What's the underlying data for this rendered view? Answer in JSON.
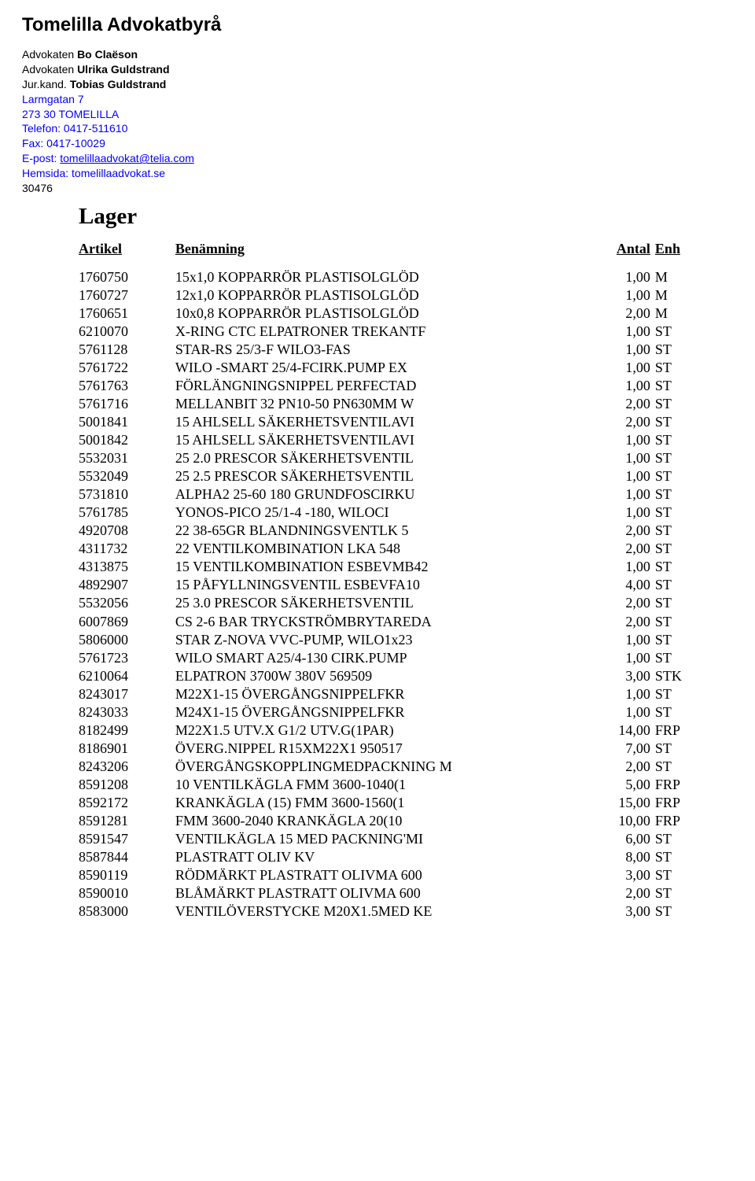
{
  "header": {
    "firm_name": "Tomelilla Advokatbyrå",
    "contacts": [
      {
        "label": "Advokaten ",
        "name": "Bo Claëson"
      },
      {
        "label": "Advokaten ",
        "name": "Ulrika Guldstrand"
      },
      {
        "label": "Jur.kand. ",
        "name": "Tobias Guldstrand"
      }
    ],
    "address1": "Larmgatan 7",
    "address2": "273 30 TOMELILLA",
    "phone": "Telefon: 0417-511610",
    "fax": "Fax: 0417-10029",
    "email_label": "E-post: ",
    "email": "tomelillaadvokat@telia.com",
    "website_label": "Hemsida: ",
    "website": "tomelillaadvokat.se",
    "ref_number": "30476"
  },
  "section_title": "Lager",
  "columns": {
    "artikel": "Artikel",
    "benamning": "Benämning",
    "antal": "Antal",
    "enh": "Enh"
  },
  "rows": [
    {
      "artikel": "1760750",
      "benamning": "15x1,0 KOPPARRÖR PLASTISOLGLÖD",
      "antal": "1,00",
      "enh": "M"
    },
    {
      "artikel": "1760727",
      "benamning": "12x1,0 KOPPARRÖR PLASTISOLGLÖD",
      "antal": "1,00",
      "enh": "M"
    },
    {
      "artikel": "1760651",
      "benamning": "10x0,8 KOPPARRÖR PLASTISOLGLÖD",
      "antal": "2,00",
      "enh": "M"
    },
    {
      "artikel": "6210070",
      "benamning": "X-RING CTC ELPATRONER TREKANTF",
      "antal": "1,00",
      "enh": "ST"
    },
    {
      "artikel": "5761128",
      "benamning": "STAR-RS 25/3-F    WILO3-FAS",
      "antal": "1,00",
      "enh": "ST"
    },
    {
      "artikel": "5761722",
      "benamning": "WILO -SMART 25/4-FCIRK.PUMP EX",
      "antal": "1,00",
      "enh": "ST"
    },
    {
      "artikel": "5761763",
      "benamning": "FÖRLÄNGNINGSNIPPEL   PERFECTAD",
      "antal": "1,00",
      "enh": "ST"
    },
    {
      "artikel": "5761716",
      "benamning": "MELLANBIT 32 PN10-50 PN630MM W",
      "antal": "2,00",
      "enh": "ST"
    },
    {
      "artikel": "5001841",
      "benamning": "15 AHLSELL SÄKERHETSVENTILAVI",
      "antal": "2,00",
      "enh": "ST"
    },
    {
      "artikel": "5001842",
      "benamning": "15 AHLSELL SÄKERHETSVENTILAVI",
      "antal": "1,00",
      "enh": "ST"
    },
    {
      "artikel": "5532031",
      "benamning": "25 2.0 PRESCOR SÄKERHETSVENTIL",
      "antal": "1,00",
      "enh": "ST"
    },
    {
      "artikel": "5532049",
      "benamning": "25 2.5 PRESCOR SÄKERHETSVENTIL",
      "antal": "1,00",
      "enh": "ST"
    },
    {
      "artikel": "5731810",
      "benamning": "ALPHA2 25-60 180 GRUNDFOSCIRKU",
      "antal": "1,00",
      "enh": "ST"
    },
    {
      "artikel": "5761785",
      "benamning": "YONOS-PICO 25/1-4 -180, WILOCI",
      "antal": "1,00",
      "enh": "ST"
    },
    {
      "artikel": "4920708",
      "benamning": "22 38-65GR  BLANDNINGSVENTLK 5",
      "antal": "2,00",
      "enh": "ST"
    },
    {
      "artikel": "4311732",
      "benamning": "22 VENTILKOMBINATION LKA 548",
      "antal": "2,00",
      "enh": "ST"
    },
    {
      "artikel": "4313875",
      "benamning": "15 VENTILKOMBINATION ESBEVMB42",
      "antal": "1,00",
      "enh": "ST"
    },
    {
      "artikel": "4892907",
      "benamning": "15 PÅFYLLNINGSVENTIL ESBEVFA10",
      "antal": "4,00",
      "enh": "ST"
    },
    {
      "artikel": "5532056",
      "benamning": "25 3.0 PRESCOR SÄKERHETSVENTIL",
      "antal": "2,00",
      "enh": "ST"
    },
    {
      "artikel": "6007869",
      "benamning": "CS 2-6 BAR TRYCKSTRÖMBRYTAREDA",
      "antal": "2,00",
      "enh": "ST"
    },
    {
      "artikel": "5806000",
      "benamning": "STAR Z-NOVA VVC-PUMP, WILO1x23",
      "antal": "1,00",
      "enh": "ST"
    },
    {
      "artikel": "5761723",
      "benamning": "WILO SMART A25/4-130 CIRK.PUMP",
      "antal": "1,00",
      "enh": "ST"
    },
    {
      "artikel": "6210064",
      "benamning": "ELPATRON 3700W 380V 569509",
      "antal": "3,00",
      "enh": "STK"
    },
    {
      "artikel": "8243017",
      "benamning": "M22X1-15  ÖVERGÅNGSNIPPELFKR",
      "antal": "1,00",
      "enh": "ST"
    },
    {
      "artikel": "8243033",
      "benamning": "M24X1-15  ÖVERGÅNGSNIPPELFKR",
      "antal": "1,00",
      "enh": "ST"
    },
    {
      "artikel": "8182499",
      "benamning": "M22X1.5 UTV.X G1/2 UTV.G(1PAR)",
      "antal": "14,00",
      "enh": "FRP"
    },
    {
      "artikel": "8186901",
      "benamning": "ÖVERG.NIPPEL R15XM22X1 950517",
      "antal": "7,00",
      "enh": "ST"
    },
    {
      "artikel": "8243206",
      "benamning": "ÖVERGÅNGSKOPPLINGMEDPACKNING M",
      "antal": "2,00",
      "enh": "ST"
    },
    {
      "artikel": "8591208",
      "benamning": "10 VENTILKÄGLA FMM 3600-1040(1",
      "antal": "5,00",
      "enh": "FRP"
    },
    {
      "artikel": "8592172",
      "benamning": "KRANKÄGLA (15) FMM 3600-1560(1",
      "antal": "15,00",
      "enh": "FRP"
    },
    {
      "artikel": "8591281",
      "benamning": "FMM 3600-2040 KRANKÄGLA 20(10",
      "antal": "10,00",
      "enh": "FRP"
    },
    {
      "artikel": "8591547",
      "benamning": "VENTILKÄGLA 15 MED PACKNING'MI",
      "antal": "6,00",
      "enh": "ST"
    },
    {
      "artikel": "8587844",
      "benamning": "PLASTRATT OLIV KV",
      "antal": "8,00",
      "enh": "ST"
    },
    {
      "artikel": "8590119",
      "benamning": "RÖDMÄRKT  PLASTRATT OLIVMA 600",
      "antal": "3,00",
      "enh": "ST"
    },
    {
      "artikel": "8590010",
      "benamning": "BLÅMÄRKT  PLASTRATT OLIVMA 600",
      "antal": "2,00",
      "enh": "ST"
    },
    {
      "artikel": "8583000",
      "benamning": "VENTILÖVERSTYCKE M20X1.5MED KE",
      "antal": "3,00",
      "enh": "ST"
    }
  ]
}
